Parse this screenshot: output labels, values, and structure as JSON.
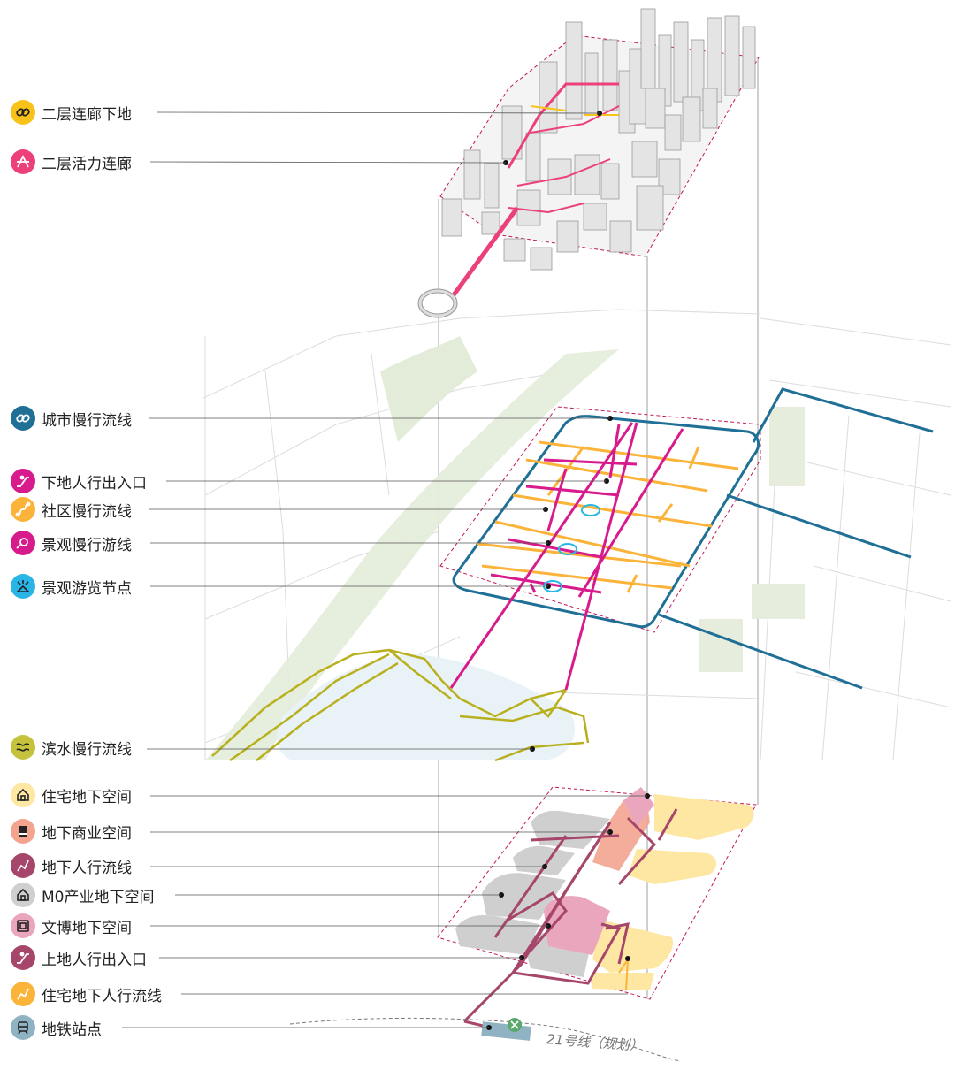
{
  "legend_top": [
    {
      "id": "l1",
      "label": "二层连廊下地",
      "color": "#f7c21a",
      "icon": "link-icon"
    },
    {
      "id": "l2",
      "label": "二层活力连廊",
      "color": "#ec407a",
      "icon": "bridge-icon"
    }
  ],
  "legend_mid": [
    {
      "id": "m1",
      "label": "城市慢行流线",
      "color": "#1f6f96",
      "icon": "link-icon"
    },
    {
      "id": "m2",
      "label": "下地人行出入口",
      "color": "#d81b8c",
      "icon": "escalator-down-icon"
    },
    {
      "id": "m3",
      "label": "社区慢行流线",
      "color": "#fbb33a",
      "icon": "route-icon"
    },
    {
      "id": "m4",
      "label": "景观慢行游线",
      "color": "#d81b8c",
      "icon": "loop-route-icon"
    },
    {
      "id": "m5",
      "label": "景观游览节点",
      "color": "#29b6e6",
      "icon": "viewpoint-icon"
    }
  ],
  "legend_water": [
    {
      "id": "w1",
      "label": "滨水慢行流线",
      "color": "#c5c33e",
      "icon": "wave-route-icon"
    }
  ],
  "legend_bottom": [
    {
      "id": "b1",
      "label": "住宅地下空间",
      "color": "#fde7a3",
      "icon": "house-icon"
    },
    {
      "id": "b2",
      "label": "地下商业空间",
      "color": "#f2a48f",
      "icon": "shop-icon"
    },
    {
      "id": "b3",
      "label": "地下人行流线",
      "color": "#a6466b",
      "icon": "walk-line-icon"
    },
    {
      "id": "b4",
      "label": "M0产业地下空间",
      "color": "#cfcfcf",
      "icon": "industry-icon"
    },
    {
      "id": "b5",
      "label": "文博地下空间",
      "color": "#e9a6bd",
      "icon": "museum-icon"
    },
    {
      "id": "b6",
      "label": "上地人行出入口",
      "color": "#a6466b",
      "icon": "escalator-up-icon"
    },
    {
      "id": "b7",
      "label": "住宅地下人行流线",
      "color": "#fbb33a",
      "icon": "walk-line-icon"
    },
    {
      "id": "b8",
      "label": "地铁站点",
      "color": "#8fb3c2",
      "icon": "metro-icon"
    }
  ],
  "metro_line_label": "21号线（规划）",
  "colors": {
    "corridor": "#ec407a",
    "corridor_light": "#f7c21a",
    "city_slow": "#1f6f96",
    "community": "#fbb33a",
    "landscape": "#d81b8c",
    "waterfront": "#b8b01e",
    "underground_path": "#a6466b",
    "boundary": "#c2185b"
  }
}
